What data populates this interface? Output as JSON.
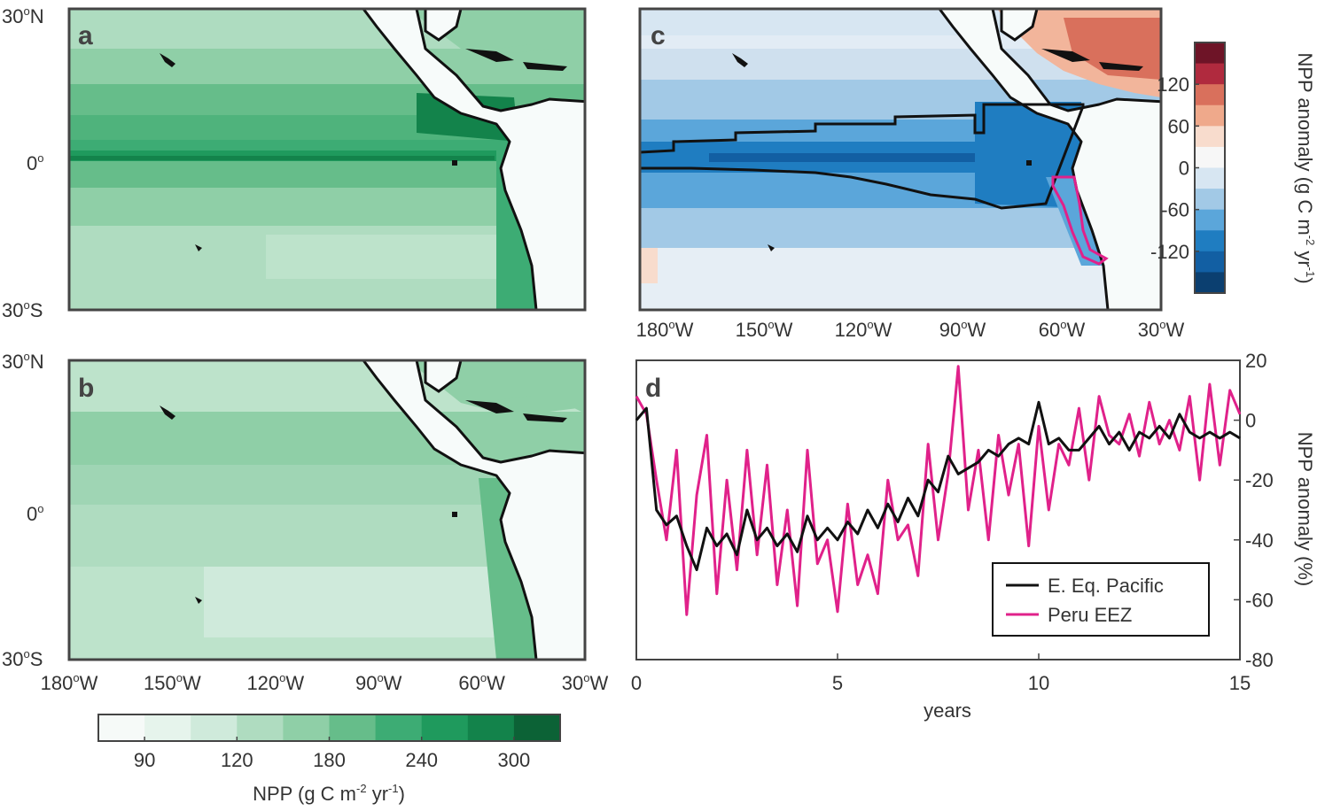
{
  "figure": {
    "panels": {
      "a": {
        "letter": "a"
      },
      "b": {
        "letter": "b"
      },
      "c": {
        "letter": "c"
      },
      "d": {
        "letter": "d"
      }
    },
    "map_lat_labels": {
      "north": "30",
      "equator": "0",
      "south": "30",
      "n": "N",
      "s": "S",
      "deg": "o"
    },
    "map_lon_labels": [
      {
        "num": "180",
        "dir": "W"
      },
      {
        "num": "150",
        "dir": "W"
      },
      {
        "num": "120",
        "dir": "W"
      },
      {
        "num": "90",
        "dir": "W"
      },
      {
        "num": "60",
        "dir": "W"
      },
      {
        "num": "30",
        "dir": "W"
      }
    ],
    "npp_colorbar": {
      "label_prefix": "NPP (g C m",
      "label_exp1": "-2",
      "label_mid": " yr",
      "label_exp2": "-1",
      "label_suffix": ")",
      "ticks": [
        "90",
        "120",
        "180",
        "240",
        "300"
      ],
      "colors": [
        "#f6faf8",
        "#e6f4ec",
        "#cfeadb",
        "#afdcc0",
        "#8fcfa7",
        "#66bd8a",
        "#3dac74",
        "#1f9a5d",
        "#13834b",
        "#0c6236"
      ]
    },
    "anomaly_colorbar": {
      "label_prefix": "NPP anomaly (g C m",
      "label_exp1": "-2",
      "label_mid": " yr",
      "label_exp2": "-1",
      "label_suffix": ")",
      "ticks": [
        "120",
        "60",
        "0",
        "-60",
        "-120"
      ],
      "colors": [
        "#6e1427",
        "#b02a3e",
        "#d9705c",
        "#efa98b",
        "#f8dccd",
        "#f7f7f7",
        "#d7e6f2",
        "#a2c9e6",
        "#5ba6da",
        "#1f7dc1",
        "#125fa3",
        "#0b3f70"
      ]
    },
    "colors": {
      "east_eq_pacific": "#111111",
      "peru_eez": "#e0218a",
      "land": "#f7fbfa",
      "coast": "#111111"
    }
  },
  "chart_data": {
    "type": "line",
    "panel": "d",
    "xlabel": "years",
    "ylabel": "NPP anomaly (%)",
    "xlim": [
      0,
      15
    ],
    "ylim": [
      -80,
      20
    ],
    "xticks": [
      "0",
      "5",
      "10",
      "15"
    ],
    "yticks": [
      "20",
      "0",
      "-20",
      "-40",
      "-60",
      "-80"
    ],
    "legend_position": "bottom-right",
    "series": [
      {
        "name": "E. Eq. Pacific",
        "color": "#111111",
        "x": [
          0,
          0.25,
          0.5,
          0.75,
          1,
          1.25,
          1.5,
          1.75,
          2,
          2.25,
          2.5,
          2.75,
          3,
          3.25,
          3.5,
          3.75,
          4,
          4.25,
          4.5,
          4.75,
          5,
          5.25,
          5.5,
          5.75,
          6,
          6.25,
          6.5,
          6.75,
          7,
          7.25,
          7.5,
          7.75,
          8,
          8.25,
          8.5,
          8.75,
          9,
          9.25,
          9.5,
          9.75,
          10,
          10.25,
          10.5,
          10.75,
          11,
          11.25,
          11.5,
          11.75,
          12,
          12.25,
          12.5,
          12.75,
          13,
          13.25,
          13.5,
          13.75,
          14,
          14.25,
          14.5,
          14.75,
          15
        ],
        "y": [
          0,
          4,
          -30,
          -35,
          -32,
          -42,
          -50,
          -36,
          -42,
          -38,
          -45,
          -30,
          -40,
          -36,
          -42,
          -38,
          -44,
          -32,
          -40,
          -36,
          -40,
          -34,
          -38,
          -30,
          -36,
          -28,
          -34,
          -26,
          -32,
          -20,
          -24,
          -12,
          -18,
          -16,
          -14,
          -10,
          -12,
          -8,
          -6,
          -8,
          6,
          -8,
          -6,
          -10,
          -10,
          -6,
          -2,
          -8,
          -4,
          -10,
          -4,
          -6,
          -2,
          -6,
          2,
          -4,
          -6,
          -4,
          -6,
          -4,
          -6
        ]
      },
      {
        "name": "Peru EEZ",
        "color": "#e0218a",
        "x": [
          0,
          0.25,
          0.5,
          0.75,
          1,
          1.25,
          1.5,
          1.75,
          2,
          2.25,
          2.5,
          2.75,
          3,
          3.25,
          3.5,
          3.75,
          4,
          4.25,
          4.5,
          4.75,
          5,
          5.25,
          5.5,
          5.75,
          6,
          6.25,
          6.5,
          6.75,
          7,
          7.25,
          7.5,
          7.75,
          8,
          8.25,
          8.5,
          8.75,
          9,
          9.25,
          9.5,
          9.75,
          10,
          10.25,
          10.5,
          10.75,
          11,
          11.25,
          11.5,
          11.75,
          12,
          12.25,
          12.5,
          12.75,
          13,
          13.25,
          13.5,
          13.75,
          14,
          14.25,
          14.5,
          14.75,
          15
        ],
        "y": [
          8,
          2,
          -20,
          -40,
          -10,
          -65,
          -25,
          -5,
          -58,
          -20,
          -50,
          -10,
          -45,
          -15,
          -55,
          -30,
          -62,
          -10,
          -48,
          -40,
          -64,
          -28,
          -55,
          -45,
          -58,
          -20,
          -40,
          -35,
          -52,
          -8,
          -40,
          -18,
          18,
          -30,
          -10,
          -40,
          -5,
          -25,
          -8,
          -42,
          -2,
          -30,
          -8,
          -15,
          4,
          -20,
          8,
          -5,
          -8,
          2,
          -12,
          6,
          -8,
          0,
          -10,
          8,
          -20,
          12,
          -15,
          10,
          2
        ]
      }
    ]
  }
}
